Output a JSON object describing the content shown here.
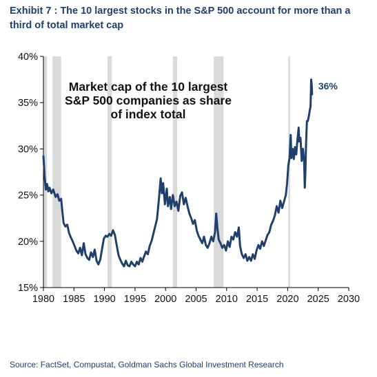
{
  "header": {
    "title": "Exhibit 7 : The 10 largest stocks in the S&P 500 account for more than a third of total market cap"
  },
  "footer": {
    "source": "Source: FactSet, Compustat, Goldman Sachs Global Investment Research"
  },
  "chart_data": {
    "type": "line",
    "annotation_lines": [
      "Market cap of the 10 largest",
      "S&P 500 companies as share",
      "of index total"
    ],
    "end_label": "36%",
    "xlim": [
      1980,
      2030
    ],
    "ylim": [
      15,
      40
    ],
    "x_ticks": [
      1980,
      1985,
      1990,
      1995,
      2000,
      2005,
      2010,
      2015,
      2020,
      2025,
      2030
    ],
    "y_ticks": [
      {
        "value": 15,
        "label": "15%"
      },
      {
        "value": 20,
        "label": "20%"
      },
      {
        "value": 25,
        "label": "25%"
      },
      {
        "value": 30,
        "label": "30%"
      },
      {
        "value": 35,
        "label": "35%"
      },
      {
        "value": 40,
        "label": "40%"
      }
    ],
    "grid": "none",
    "recessions": [
      [
        1980.0,
        1980.6
      ],
      [
        1981.5,
        1982.9
      ],
      [
        1990.5,
        1991.2
      ],
      [
        2001.2,
        2001.9
      ],
      [
        2007.9,
        2009.5
      ],
      [
        2020.1,
        2020.4
      ]
    ],
    "series": [
      {
        "color": "#1f3f6e",
        "points": [
          [
            1980.0,
            29.2
          ],
          [
            1980.2,
            27.0
          ],
          [
            1980.4,
            25.6
          ],
          [
            1980.6,
            26.2
          ],
          [
            1980.8,
            25.4
          ],
          [
            1981.0,
            25.8
          ],
          [
            1981.3,
            25.2
          ],
          [
            1981.6,
            25.6
          ],
          [
            1982.0,
            24.8
          ],
          [
            1982.3,
            25.1
          ],
          [
            1982.6,
            24.4
          ],
          [
            1982.9,
            24.6
          ],
          [
            1983.1,
            23.2
          ],
          [
            1983.3,
            22.0
          ],
          [
            1983.6,
            21.6
          ],
          [
            1983.9,
            21.8
          ],
          [
            1984.2,
            20.9
          ],
          [
            1984.5,
            20.4
          ],
          [
            1984.8,
            20.0
          ],
          [
            1985.1,
            19.5
          ],
          [
            1985.4,
            19.0
          ],
          [
            1985.7,
            18.7
          ],
          [
            1986.0,
            19.3
          ],
          [
            1986.3,
            18.5
          ],
          [
            1986.6,
            19.8
          ],
          [
            1986.9,
            18.6
          ],
          [
            1987.2,
            18.2
          ],
          [
            1987.5,
            18.0
          ],
          [
            1987.8,
            18.8
          ],
          [
            1988.1,
            18.3
          ],
          [
            1988.4,
            19.1
          ],
          [
            1988.7,
            17.9
          ],
          [
            1989.0,
            17.5
          ],
          [
            1989.3,
            18.0
          ],
          [
            1989.6,
            19.2
          ],
          [
            1989.9,
            20.3
          ],
          [
            1990.2,
            20.6
          ],
          [
            1990.5,
            20.5
          ],
          [
            1990.8,
            20.8
          ],
          [
            1991.1,
            20.6
          ],
          [
            1991.4,
            21.2
          ],
          [
            1991.7,
            20.7
          ],
          [
            1992.0,
            19.6
          ],
          [
            1992.3,
            18.5
          ],
          [
            1992.6,
            18.0
          ],
          [
            1992.9,
            17.6
          ],
          [
            1993.2,
            17.3
          ],
          [
            1993.5,
            17.9
          ],
          [
            1993.8,
            17.4
          ],
          [
            1994.1,
            17.3
          ],
          [
            1994.4,
            17.8
          ],
          [
            1994.7,
            17.5
          ],
          [
            1995.0,
            17.3
          ],
          [
            1995.3,
            17.8
          ],
          [
            1995.6,
            17.5
          ],
          [
            1995.9,
            18.2
          ],
          [
            1996.2,
            17.8
          ],
          [
            1996.5,
            18.4
          ],
          [
            1996.8,
            18.9
          ],
          [
            1997.1,
            18.6
          ],
          [
            1997.4,
            19.5
          ],
          [
            1997.7,
            20.0
          ],
          [
            1998.0,
            20.8
          ],
          [
            1998.3,
            21.6
          ],
          [
            1998.6,
            22.4
          ],
          [
            1998.9,
            24.5
          ],
          [
            1999.2,
            26.8
          ],
          [
            1999.4,
            25.2
          ],
          [
            1999.6,
            26.3
          ],
          [
            1999.9,
            24.0
          ],
          [
            2000.2,
            25.7
          ],
          [
            2000.4,
            23.8
          ],
          [
            2000.7,
            24.8
          ],
          [
            2000.9,
            23.5
          ],
          [
            2001.2,
            25.0
          ],
          [
            2001.5,
            23.8
          ],
          [
            2001.8,
            24.3
          ],
          [
            2002.1,
            23.3
          ],
          [
            2002.4,
            24.9
          ],
          [
            2002.7,
            25.3
          ],
          [
            2003.0,
            24.0
          ],
          [
            2003.3,
            24.7
          ],
          [
            2003.6,
            23.8
          ],
          [
            2003.9,
            23.0
          ],
          [
            2004.2,
            22.5
          ],
          [
            2004.5,
            21.9
          ],
          [
            2004.8,
            22.3
          ],
          [
            2005.1,
            21.2
          ],
          [
            2005.4,
            20.6
          ],
          [
            2005.7,
            20.2
          ],
          [
            2006.0,
            19.8
          ],
          [
            2006.3,
            20.5
          ],
          [
            2006.6,
            19.6
          ],
          [
            2006.9,
            19.3
          ],
          [
            2007.2,
            19.8
          ],
          [
            2007.5,
            20.5
          ],
          [
            2007.8,
            20.0
          ],
          [
            2008.1,
            21.0
          ],
          [
            2008.3,
            23.0
          ],
          [
            2008.5,
            21.4
          ],
          [
            2008.7,
            20.2
          ],
          [
            2009.0,
            19.8
          ],
          [
            2009.3,
            19.3
          ],
          [
            2009.6,
            19.6
          ],
          [
            2009.9,
            19.0
          ],
          [
            2010.2,
            20.0
          ],
          [
            2010.5,
            19.4
          ],
          [
            2010.8,
            20.5
          ],
          [
            2011.1,
            20.2
          ],
          [
            2011.4,
            21.0
          ],
          [
            2011.7,
            20.5
          ],
          [
            2012.0,
            21.5
          ],
          [
            2012.2,
            19.5
          ],
          [
            2012.5,
            18.6
          ],
          [
            2012.8,
            18.2
          ],
          [
            2013.1,
            18.6
          ],
          [
            2013.4,
            17.9
          ],
          [
            2013.7,
            18.3
          ],
          [
            2014.0,
            17.9
          ],
          [
            2014.3,
            18.6
          ],
          [
            2014.6,
            18.1
          ],
          [
            2014.9,
            19.0
          ],
          [
            2015.2,
            19.6
          ],
          [
            2015.5,
            19.2
          ],
          [
            2015.8,
            20.0
          ],
          [
            2016.1,
            19.5
          ],
          [
            2016.4,
            20.1
          ],
          [
            2016.7,
            20.7
          ],
          [
            2017.0,
            21.0
          ],
          [
            2017.3,
            21.8
          ],
          [
            2017.6,
            22.2
          ],
          [
            2017.9,
            22.8
          ],
          [
            2018.2,
            23.8
          ],
          [
            2018.5,
            23.1
          ],
          [
            2018.8,
            24.4
          ],
          [
            2019.1,
            23.6
          ],
          [
            2019.4,
            24.3
          ],
          [
            2019.7,
            25.0
          ],
          [
            2019.9,
            26.2
          ],
          [
            2020.1,
            28.2
          ],
          [
            2020.3,
            29.0
          ],
          [
            2020.5,
            31.5
          ],
          [
            2020.6,
            29.0
          ],
          [
            2020.8,
            30.0
          ],
          [
            2021.0,
            28.9
          ],
          [
            2021.2,
            30.2
          ],
          [
            2021.4,
            29.4
          ],
          [
            2021.6,
            31.0
          ],
          [
            2021.8,
            32.3
          ],
          [
            2021.9,
            30.8
          ],
          [
            2022.1,
            31.2
          ],
          [
            2022.3,
            28.7
          ],
          [
            2022.5,
            30.0
          ],
          [
            2022.7,
            28.6
          ],
          [
            2022.8,
            25.8
          ],
          [
            2022.9,
            27.4
          ],
          [
            2023.0,
            30.4
          ],
          [
            2023.15,
            33.0
          ],
          [
            2023.3,
            33.0
          ],
          [
            2023.45,
            33.5
          ],
          [
            2023.6,
            34.1
          ],
          [
            2023.75,
            34.6
          ],
          [
            2023.85,
            37.5
          ],
          [
            2023.95,
            36.8
          ],
          [
            2024.0,
            35.9
          ]
        ]
      }
    ]
  }
}
